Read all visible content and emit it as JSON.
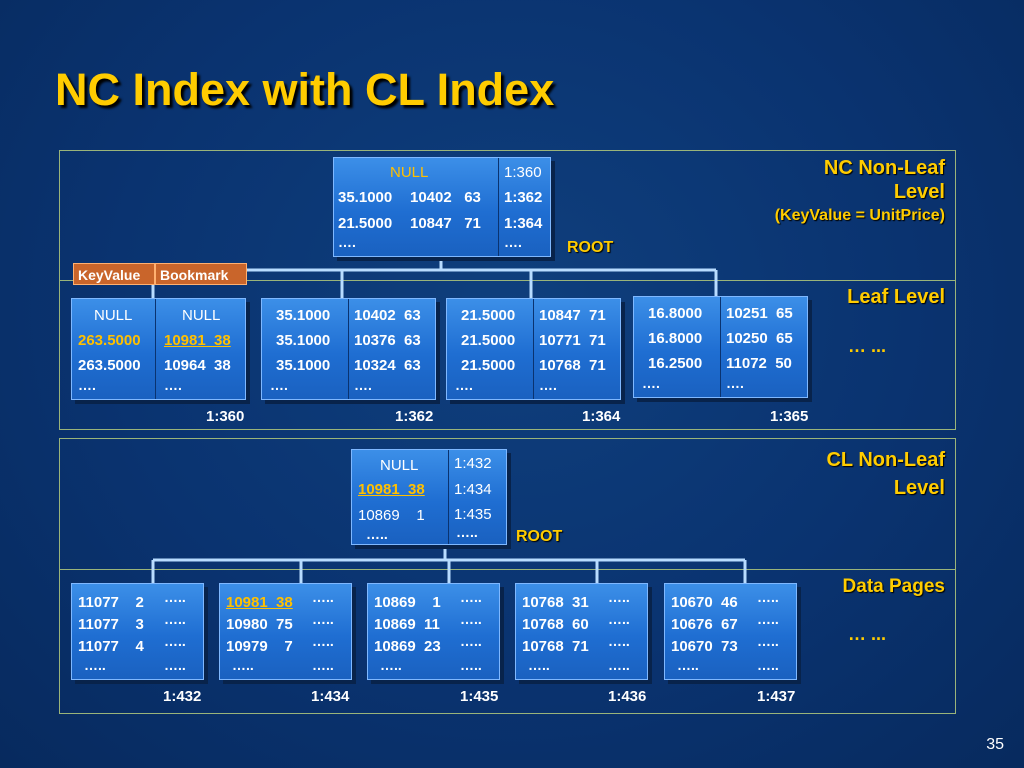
{
  "title": "NC Index with CL Index",
  "page_number": "35",
  "nc_section": {
    "nonleaf_label_line1": "NC Non-Leaf",
    "nonleaf_label_line2": "Level",
    "nonleaf_label_line3": "(KeyValue = UnitPrice)",
    "root_label": "ROOT",
    "keyvalue_tag": "KeyValue",
    "bookmark_tag": "Bookmark",
    "root_node": {
      "rows": [
        {
          "key": "NULL",
          "bookmark": "",
          "page": "1:360"
        },
        {
          "key": "35.1000",
          "bookmark": "10402   63",
          "page": "1:362"
        },
        {
          "key": "21.5000",
          "bookmark": "10847   71",
          "page": "1:364"
        },
        {
          "key": "….",
          "bookmark": "",
          "page": "…."
        }
      ]
    },
    "leaf_label": "Leaf Level",
    "leaf_ellipsis": "… ...",
    "leaf_pages": [
      {
        "page_id": "1:360",
        "rows": [
          {
            "key": "NULL",
            "bookmark": "NULL"
          },
          {
            "key": "263.5000",
            "bookmark": "10981  38"
          },
          {
            "key": "263.5000",
            "bookmark": "10964  38"
          },
          {
            "key": "….",
            "bookmark": "…."
          }
        ]
      },
      {
        "page_id": "1:362",
        "rows": [
          {
            "key": "35.1000",
            "bookmark": "10402  63"
          },
          {
            "key": "35.1000",
            "bookmark": "10376  63"
          },
          {
            "key": "35.1000",
            "bookmark": "10324  63"
          },
          {
            "key": "….",
            "bookmark": "…."
          }
        ]
      },
      {
        "page_id": "1:364",
        "rows": [
          {
            "key": "21.5000",
            "bookmark": "10847  71"
          },
          {
            "key": "21.5000",
            "bookmark": "10771  71"
          },
          {
            "key": "21.5000",
            "bookmark": "10768  71"
          },
          {
            "key": "….",
            "bookmark": "…."
          }
        ]
      },
      {
        "page_id": "1:365",
        "rows": [
          {
            "key": "16.8000",
            "bookmark": "10251  65"
          },
          {
            "key": "16.8000",
            "bookmark": "10250  65"
          },
          {
            "key": "16.2500",
            "bookmark": "11072  50"
          },
          {
            "key": "….",
            "bookmark": "…."
          }
        ]
      }
    ]
  },
  "cl_section": {
    "nonleaf_label_line1": "CL Non-Leaf",
    "nonleaf_label_line2": "Level",
    "root_label": "ROOT",
    "root_node": {
      "rows": [
        {
          "key": "NULL",
          "page": "1:432"
        },
        {
          "key": "10981  38",
          "page": "1:434"
        },
        {
          "key": "10869    1",
          "page": "1:435"
        },
        {
          "key": "…..",
          "page": "….."
        }
      ]
    },
    "data_label": "Data Pages",
    "data_ellipsis": "… ...",
    "data_pages": [
      {
        "page_id": "1:432",
        "rows": [
          {
            "key": "11077    2",
            "rest": "….."
          },
          {
            "key": "11077    3",
            "rest": "….."
          },
          {
            "key": "11077    4",
            "rest": "….."
          },
          {
            "key": "…..",
            "rest": "….."
          }
        ]
      },
      {
        "page_id": "1:434",
        "rows": [
          {
            "key": "10981  38",
            "rest": "….."
          },
          {
            "key": "10980  75",
            "rest": "….."
          },
          {
            "key": "10979    7",
            "rest": "….."
          },
          {
            "key": "…..",
            "rest": "….."
          }
        ]
      },
      {
        "page_id": "1:435",
        "rows": [
          {
            "key": "10869    1",
            "rest": "….."
          },
          {
            "key": "10869  11",
            "rest": "….."
          },
          {
            "key": "10869  23",
            "rest": "….."
          },
          {
            "key": "…..",
            "rest": "….."
          }
        ]
      },
      {
        "page_id": "1:436",
        "rows": [
          {
            "key": "10768  31",
            "rest": "….."
          },
          {
            "key": "10768  60",
            "rest": "….."
          },
          {
            "key": "10768  71",
            "rest": "….."
          },
          {
            "key": "…..",
            "rest": "….."
          }
        ]
      },
      {
        "page_id": "1:437",
        "rows": [
          {
            "key": "10670  46",
            "rest": "….."
          },
          {
            "key": "10676  67",
            "rest": "….."
          },
          {
            "key": "10670  73",
            "rest": "….."
          },
          {
            "key": "…..",
            "rest": "….."
          }
        ]
      }
    ]
  },
  "colors": {
    "title": "#ffcc00",
    "highlight": "#ffc000",
    "node_fill": "#2a7fe0",
    "background": "#0a3370",
    "tag_fill": "#c9652b"
  }
}
